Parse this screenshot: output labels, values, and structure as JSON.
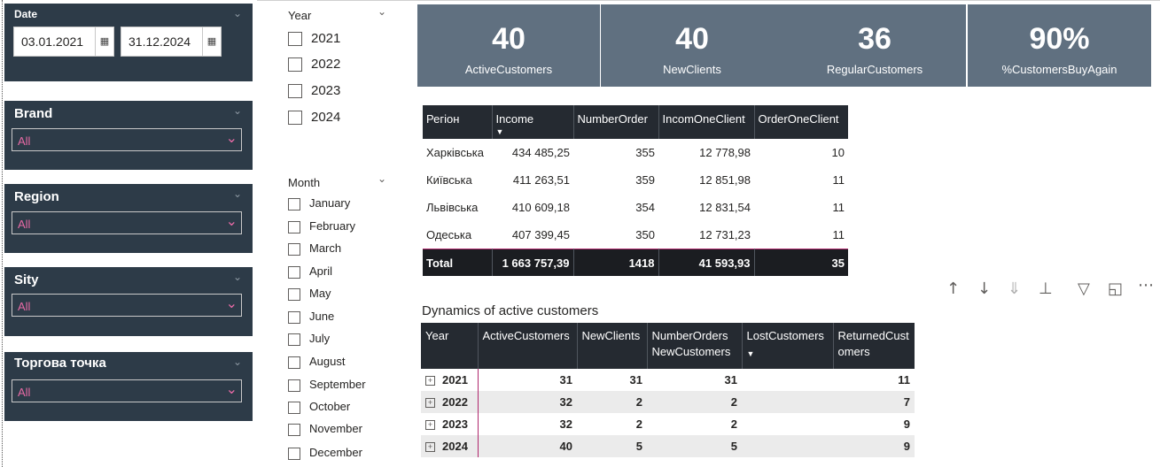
{
  "date_slicer": {
    "title": "Date",
    "start": "03.01.2021",
    "end": "31.12.2024"
  },
  "dropdown_slicers": [
    {
      "title": "Brand",
      "value": "All"
    },
    {
      "title": "Region",
      "value": "All"
    },
    {
      "title": "Sity",
      "value": "All"
    },
    {
      "title": "Торгова точка",
      "value": "All"
    }
  ],
  "year_slicer": {
    "title": "Year",
    "items": [
      "2021",
      "2022",
      "2023",
      "2024"
    ]
  },
  "month_slicer": {
    "title": "Month",
    "items": [
      "January",
      "February",
      "March",
      "April",
      "May",
      "June",
      "July",
      "August",
      "September",
      "October",
      "November",
      "December"
    ]
  },
  "cards": [
    {
      "value": "40",
      "label": "ActiveCustomers"
    },
    {
      "value": "40",
      "label": "NewClients"
    },
    {
      "value": "36",
      "label": "RegularCustomers"
    },
    {
      "value": "90%",
      "label": "%CustomersBuyAgain"
    }
  ],
  "region_table": {
    "headers": [
      "Регіон",
      "Income",
      "NumberOrder",
      "IncomOneClient",
      "OrderOneClient"
    ],
    "rows": [
      [
        "Харківська",
        "434 485,25",
        "355",
        "12 778,98",
        "10"
      ],
      [
        "Київська",
        "411 263,51",
        "359",
        "12 851,98",
        "11"
      ],
      [
        "Львівська",
        "410 609,18",
        "354",
        "12 831,54",
        "11"
      ],
      [
        "Одеська",
        "407 399,45",
        "350",
        "12 731,23",
        "11"
      ]
    ],
    "total": [
      "Total",
      "1 663 757,39",
      "1418",
      "41 593,93",
      "35"
    ]
  },
  "dynamics_table": {
    "title": "Dynamics of active customers",
    "headers": [
      "Year",
      "ActiveCustomers",
      "NewClients",
      "NumberOrders NewCustomers",
      "LostCustomers",
      "ReturnedCust omers"
    ],
    "rows": [
      [
        "2021",
        "31",
        "31",
        "31",
        "",
        "11"
      ],
      [
        "2022",
        "32",
        "2",
        "2",
        "",
        "7"
      ],
      [
        "2023",
        "32",
        "2",
        "2",
        "",
        "9"
      ],
      [
        "2024",
        "40",
        "5",
        "5",
        "",
        "9"
      ]
    ]
  },
  "colors": {
    "panel_bg": "#2d3b48",
    "card_bg": "#607080",
    "header_bg": "#252a31",
    "accent": "#e76aa5"
  }
}
